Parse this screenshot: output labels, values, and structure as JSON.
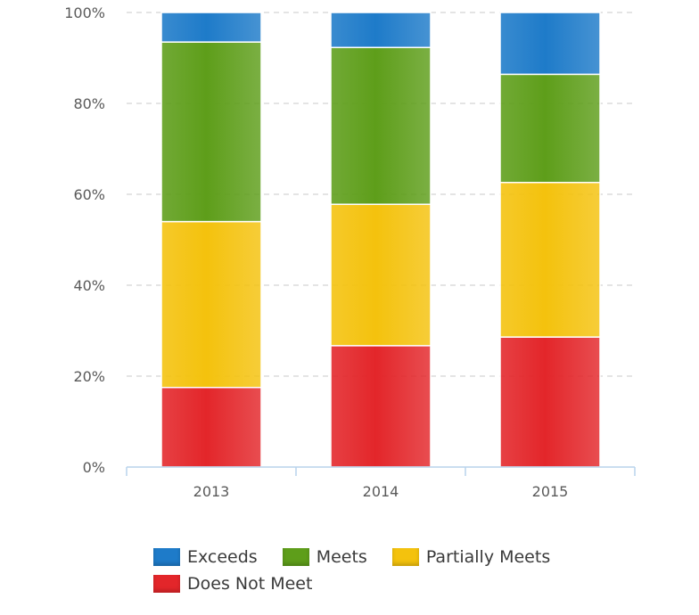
{
  "chart_data": {
    "type": "bar",
    "stacked": true,
    "categories": [
      "2013",
      "2014",
      "2015"
    ],
    "series": [
      {
        "name": "Does Not Meet",
        "color": "#e3262a",
        "values": [
          17.5,
          26.7,
          28.6
        ]
      },
      {
        "name": "Partially Meets",
        "color": "#f4c20d",
        "values": [
          36.5,
          31.1,
          34.0
        ]
      },
      {
        "name": "Meets",
        "color": "#5e9e1a",
        "values": [
          39.5,
          34.5,
          23.8
        ]
      },
      {
        "name": "Exceeds",
        "color": "#1e7bc9",
        "values": [
          6.5,
          7.7,
          13.6
        ]
      }
    ],
    "yticks": [
      "0%",
      "20%",
      "40%",
      "60%",
      "80%",
      "100%"
    ],
    "ylim": [
      0,
      100
    ],
    "grid": true,
    "legend_position": "bottom"
  },
  "legend": {
    "rows": [
      [
        {
          "label": "Exceeds",
          "color": "#1e7bc9"
        },
        {
          "label": "Meets",
          "color": "#5e9e1a"
        },
        {
          "label": "Partially Meets",
          "color": "#f4c20d"
        }
      ],
      [
        {
          "label": "Does Not Meet",
          "color": "#e3262a"
        }
      ]
    ]
  }
}
